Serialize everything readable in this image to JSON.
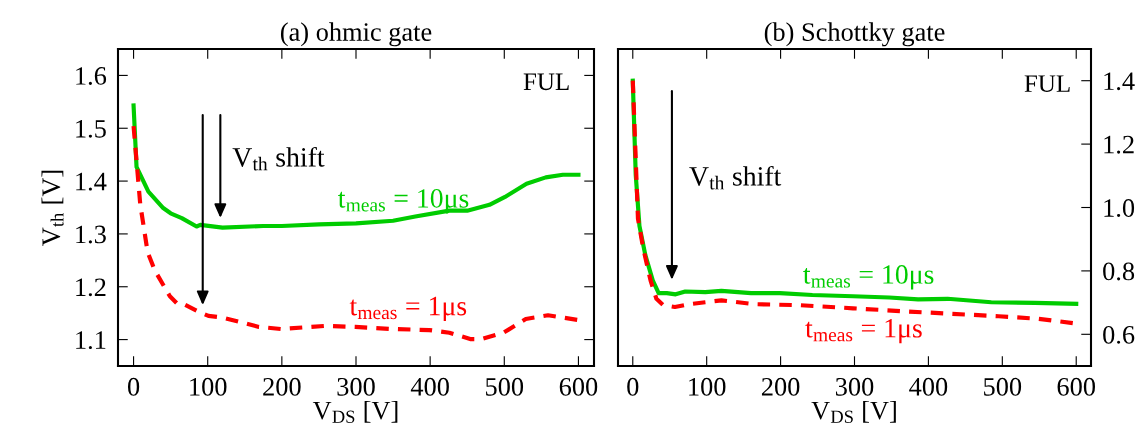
{
  "chart_data": [
    {
      "type": "line",
      "title": "(a) ohmic gate",
      "xlabel": "V$_{DS}$ [V]",
      "ylabel": "V$_{th}$ [V]",
      "xlim": [
        -21,
        621
      ],
      "xticks": [
        0,
        100,
        200,
        300,
        400,
        500,
        600
      ],
      "ylim": [
        1.05,
        1.65
      ],
      "yticks": [
        1.1,
        1.2,
        1.3,
        1.4,
        1.5,
        1.6
      ],
      "grid": false,
      "legend": false,
      "annotations": [
        "FUL",
        "V$_{th}$ shift"
      ],
      "series": [
        {
          "name": "t$_{meas}$ = 10μs",
          "color": "#00cc00",
          "line_style": "solid",
          "x": [
            0,
            4,
            20,
            40,
            50,
            65,
            85,
            90,
            120,
            175,
            200,
            250,
            300,
            350,
            380,
            426,
            450,
            480,
            501,
            530,
            556,
            579,
            600
          ],
          "values": [
            1.543,
            1.427,
            1.38,
            1.349,
            1.339,
            1.33,
            1.314,
            1.317,
            1.312,
            1.315,
            1.315,
            1.318,
            1.32,
            1.325,
            1.333,
            1.344,
            1.344,
            1.355,
            1.37,
            1.395,
            1.407,
            1.412,
            1.412
          ]
        },
        {
          "name": "t$_{meas}$ = 1μs",
          "color": "#ff0000",
          "line_style": "dashed",
          "x": [
            0,
            9,
            19,
            29,
            49,
            59,
            69,
            89,
            101,
            119,
            169,
            199,
            259,
            299,
            349,
            399,
            426,
            454,
            469,
            499,
            529,
            559,
            600
          ],
          "values": [
            1.504,
            1.356,
            1.265,
            1.23,
            1.182,
            1.168,
            1.166,
            1.152,
            1.145,
            1.142,
            1.124,
            1.12,
            1.126,
            1.124,
            1.12,
            1.118,
            1.113,
            1.101,
            1.101,
            1.113,
            1.139,
            1.146,
            1.137
          ]
        }
      ]
    },
    {
      "type": "line",
      "title": "(b) Schottky gate",
      "xlabel": "V$_{DS}$ [V]",
      "xlim": [
        -20,
        620
      ],
      "xticks": [
        0,
        100,
        200,
        300,
        400,
        500,
        600
      ],
      "y2lim": [
        0.5,
        1.5
      ],
      "y2ticks": [
        0.6,
        0.8,
        {
          "value": 1,
          "label": "1.0"
        },
        1.2,
        1.4
      ],
      "grid": false,
      "legend": false,
      "annotations": [
        "FUL",
        "V$_{th}$ shift"
      ],
      "series": [
        {
          "name": "t$_{meas}$ = 10μs",
          "color": "#00cc00",
          "line_style": "solid",
          "axis": "y2",
          "x": [
            0,
            4,
            9,
            17,
            27,
            35,
            46,
            58,
            71,
            98,
            120,
            160,
            199,
            243,
            298,
            347,
            386,
            426,
            485,
            544,
            600
          ],
          "values": [
            1.4,
            1.103,
            0.942,
            0.85,
            0.77,
            0.73,
            0.73,
            0.726,
            0.735,
            0.733,
            0.737,
            0.73,
            0.73,
            0.724,
            0.72,
            0.716,
            0.71,
            0.712,
            0.701,
            0.699,
            0.696
          ]
        },
        {
          "name": "t$_{meas}$ = 1μs",
          "color": "#ff0000",
          "line_style": "dashed",
          "axis": "y2",
          "x": [
            0,
            7,
            14,
            24,
            32,
            41,
            57,
            76,
            98,
            120,
            165,
            224,
            298,
            371,
            421,
            495,
            549,
            600
          ],
          "values": [
            1.4,
            0.965,
            0.873,
            0.77,
            0.712,
            0.692,
            0.686,
            0.695,
            0.701,
            0.707,
            0.695,
            0.692,
            0.682,
            0.672,
            0.666,
            0.657,
            0.649,
            0.634
          ]
        }
      ]
    }
  ]
}
